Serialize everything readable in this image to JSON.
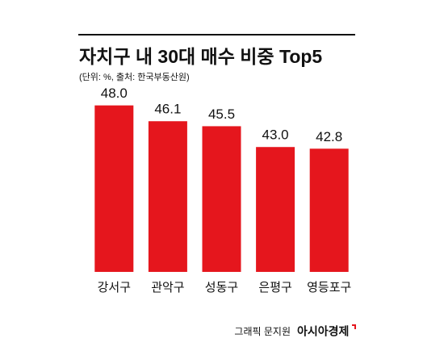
{
  "chart_data": {
    "type": "bar",
    "title": "자치구 내 30대 매수 비중 Top5",
    "subtitle": "(단위: %, 출처: 한국부동산원)",
    "categories": [
      "강서구",
      "관악구",
      "성동구",
      "은평구",
      "영등포구"
    ],
    "values": [
      48.0,
      46.1,
      45.5,
      43.0,
      42.8
    ],
    "value_labels": [
      "48.0",
      "46.1",
      "45.5",
      "43.0",
      "42.8"
    ],
    "color": "#e5161d",
    "ylim": [
      28,
      50
    ],
    "credit": "그래픽 문지원",
    "brand": "아시아경제"
  }
}
